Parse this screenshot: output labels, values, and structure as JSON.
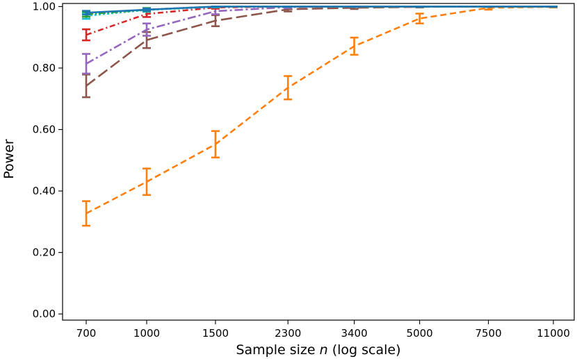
{
  "chart_data": {
    "type": "line",
    "title": "",
    "xlabel_prefix": "Sample size ",
    "xlabel_var": "n",
    "xlabel_suffix": " (log scale)",
    "ylabel": "Power",
    "x_scale": "log",
    "x": [
      700,
      1000,
      1500,
      2300,
      3400,
      5000,
      7500,
      11000
    ],
    "x_tick_labels": [
      "700",
      "1000",
      "1500",
      "2300",
      "3400",
      "5000",
      "7500",
      "11000"
    ],
    "y_ticks": [
      0.0,
      0.2,
      0.4,
      0.6,
      0.8,
      1.0
    ],
    "y_tick_labels": [
      "0.00",
      "0.20",
      "0.40",
      "0.60",
      "0.80",
      "1.00"
    ],
    "ylim": [
      -0.02,
      1.01
    ],
    "grid": false,
    "legend": "none",
    "series": [
      {
        "color": "#ff7f0e",
        "dash": "9,5",
        "values": [
          0.327,
          0.43,
          0.552,
          0.736,
          0.871,
          0.961,
          0.996,
          0.999
        ],
        "err": [
          0.04,
          0.043,
          0.043,
          0.038,
          0.028,
          0.016,
          0.006,
          0.002
        ]
      },
      {
        "color": "#8c564b",
        "dash": "16,6",
        "values": [
          0.742,
          0.891,
          0.954,
          0.991,
          0.996,
          0.999,
          1.0,
          1.0
        ],
        "err": [
          0.037,
          0.026,
          0.018,
          0.007,
          0.004,
          0.002,
          0.001,
          0.001
        ]
      },
      {
        "color": "#9467bd",
        "dash": "12,4,3,4",
        "values": [
          0.814,
          0.925,
          0.985,
          0.998,
          1.0,
          1.0,
          1.0,
          1.0
        ],
        "err": [
          0.032,
          0.02,
          0.01,
          0.003,
          0.001,
          0.001,
          0.001,
          0.001
        ]
      },
      {
        "color": "#d62728",
        "dash": "8,4,2,4",
        "values": [
          0.908,
          0.976,
          0.997,
          1.0,
          1.0,
          1.0,
          1.0,
          1.0
        ],
        "err": [
          0.018,
          0.01,
          0.004,
          0.001,
          0.001,
          0.001,
          0.001,
          0.001
        ]
      },
      {
        "color": "#17becf",
        "dash": "3,3",
        "values": [
          0.97,
          0.989,
          0.999,
          1.0,
          1.0,
          1.0,
          1.0,
          1.0
        ],
        "err": [
          0.01,
          0.006,
          0.002,
          0.001,
          0.001,
          0.001,
          0.001,
          0.001
        ]
      },
      {
        "color": "#2ca02c",
        "dash": "10,3,2,3",
        "values": [
          0.975,
          0.99,
          1.0,
          1.0,
          1.0,
          1.0,
          1.0,
          1.0
        ],
        "err": [
          0.008,
          0.005,
          0.001,
          0.001,
          0.001,
          0.001,
          0.001,
          0.001
        ]
      },
      {
        "color": "#1f77b4",
        "dash": "",
        "values": [
          0.98,
          0.99,
          1.0,
          1.0,
          1.0,
          1.0,
          1.0,
          1.0
        ],
        "err": [
          0.006,
          0.004,
          0.001,
          0.001,
          0.001,
          0.001,
          0.001,
          0.001
        ]
      }
    ]
  }
}
